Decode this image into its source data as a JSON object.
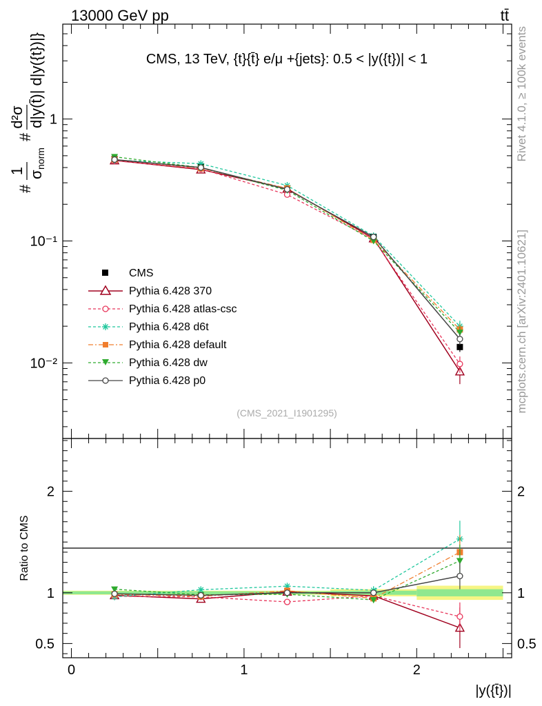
{
  "header": {
    "energy_label": "13000 GeV pp",
    "process_label": "tt̄",
    "side_rivet": "Rivet 4.1.0, ≥ 100k events",
    "side_mcplots": "mcplots.cern.ch [arXiv:2401.10621]",
    "analysis_id": "(CMS_2021_I1901295)"
  },
  "chart_data": [
    {
      "type": "line",
      "panel": "main",
      "title": "CMS, 13 TeV, {t}{t̄} e/μ +{jets}: 0.5 < |y({t})| < 1",
      "ylabel_parts": [
        "#",
        "1",
        "σ",
        "norm",
        "#",
        "d²σ",
        "d|y(t̄)| d|y({t})|}"
      ],
      "yscale": "log",
      "ylim": [
        0.0024,
        6.0
      ],
      "xlim": [
        -0.05,
        2.55
      ],
      "y_tick_labels": [
        "10⁻²",
        "10⁻¹",
        "1"
      ],
      "x": [
        0.25,
        0.75,
        1.25,
        1.75,
        2.25
      ],
      "series": [
        {
          "name": "CMS",
          "color": "#000000",
          "marker": "square",
          "line": "none",
          "values": [
            0.47,
            0.41,
            0.265,
            0.108,
            0.0135
          ],
          "errors": [
            0.015,
            0.013,
            0.008,
            0.004,
            0.0012
          ]
        },
        {
          "name": "Pythia 6.428 370",
          "color": "#a0001e",
          "marker": "open-triangle",
          "line": "solid",
          "values": [
            0.458,
            0.385,
            0.268,
            0.105,
            0.0085
          ],
          "errors": [
            0.005,
            0.004,
            0.003,
            0.002,
            0.0018
          ]
        },
        {
          "name": "Pythia 6.428 atlas-csc",
          "color": "#e8355a",
          "marker": "open-circle",
          "line": "dashed",
          "values": [
            0.455,
            0.39,
            0.24,
            0.103,
            0.0098
          ],
          "errors": [
            0.005,
            0.004,
            0.003,
            0.002,
            0.0015
          ]
        },
        {
          "name": "Pythia 6.428 d6t",
          "color": "#1ec79c",
          "marker": "star",
          "line": "dashed",
          "values": [
            0.46,
            0.43,
            0.285,
            0.11,
            0.02
          ],
          "errors": [
            0.005,
            0.004,
            0.003,
            0.002,
            0.0022
          ]
        },
        {
          "name": "Pythia 6.428 default",
          "color": "#f07e2e",
          "marker": "square",
          "line": "dashdot",
          "values": [
            0.465,
            0.395,
            0.27,
            0.102,
            0.0188
          ],
          "errors": [
            0.005,
            0.004,
            0.003,
            0.002,
            0.002
          ]
        },
        {
          "name": "Pythia 6.428 dw",
          "color": "#2eaa2e",
          "marker": "triangle-down",
          "line": "dashed",
          "values": [
            0.49,
            0.4,
            0.26,
            0.1,
            0.0178
          ],
          "errors": [
            0.005,
            0.004,
            0.003,
            0.002,
            0.002
          ]
        },
        {
          "name": "Pythia 6.428 p0",
          "color": "#444444",
          "marker": "open-circle",
          "line": "solid",
          "values": [
            0.465,
            0.4,
            0.265,
            0.108,
            0.0157
          ],
          "errors": [
            0.005,
            0.004,
            0.003,
            0.002,
            0.0016
          ]
        }
      ]
    },
    {
      "type": "line",
      "panel": "ratio",
      "ylabel": "Ratio to CMS",
      "yscale": "linear",
      "ylim": [
        0.36,
        2.52
      ],
      "xlim": [
        -0.05,
        2.55
      ],
      "xlabel": "|y({t̄})|",
      "x_tick_labels": [
        "0",
        "1",
        "2"
      ],
      "y_tick_labels": [
        "0.5",
        "1",
        "2"
      ],
      "x": [
        0.25,
        0.75,
        1.25,
        1.75,
        2.25
      ],
      "bands": [
        {
          "x_from": -0.05,
          "x_to": 1.5,
          "stat": [
            0.985,
            1.015
          ],
          "total": [
            0.98,
            1.02
          ]
        },
        {
          "x_from": 1.5,
          "x_to": 2.0,
          "stat": [
            0.98,
            1.02
          ],
          "total": [
            0.965,
            1.035
          ]
        },
        {
          "x_from": 2.0,
          "x_to": 2.5,
          "stat": [
            0.965,
            1.035
          ],
          "total": [
            0.93,
            1.07
          ]
        }
      ],
      "series": [
        {
          "name": "Pythia 6.428 370",
          "color": "#a0001e",
          "marker": "open-triangle",
          "line": "solid",
          "values": [
            0.975,
            0.94,
            1.01,
            0.97,
            0.655
          ],
          "errors": [
            0.015,
            0.015,
            0.015,
            0.03,
            0.2
          ]
        },
        {
          "name": "Pythia 6.428 atlas-csc",
          "color": "#e8355a",
          "marker": "open-circle",
          "line": "dashed",
          "values": [
            0.965,
            0.96,
            0.91,
            0.97,
            0.765
          ],
          "errors": [
            0.015,
            0.015,
            0.02,
            0.03,
            0.14
          ]
        },
        {
          "name": "Pythia 6.428 d6t",
          "color": "#1ec79c",
          "marker": "star",
          "line": "dashed",
          "values": [
            0.96,
            1.03,
            1.065,
            1.025,
            1.53
          ],
          "errors": [
            0.015,
            0.02,
            0.025,
            0.04,
            0.18
          ]
        },
        {
          "name": "Pythia 6.428 default",
          "color": "#f07e2e",
          "marker": "square",
          "line": "dashdot",
          "values": [
            0.985,
            0.965,
            1.02,
            0.945,
            1.4
          ],
          "errors": [
            0.015,
            0.015,
            0.02,
            0.03,
            0.17
          ]
        },
        {
          "name": "Pythia 6.428 dw",
          "color": "#2eaa2e",
          "marker": "triangle-down",
          "line": "dashed",
          "values": [
            1.035,
            0.98,
            0.985,
            0.93,
            1.315
          ],
          "errors": [
            0.015,
            0.015,
            0.02,
            0.03,
            0.16
          ]
        },
        {
          "name": "Pythia 6.428 p0",
          "color": "#444444",
          "marker": "open-circle",
          "line": "solid",
          "values": [
            0.99,
            0.975,
            1.0,
            1.0,
            1.165
          ],
          "errors": [
            0.012,
            0.012,
            0.015,
            0.025,
            0.13
          ]
        }
      ]
    }
  ]
}
